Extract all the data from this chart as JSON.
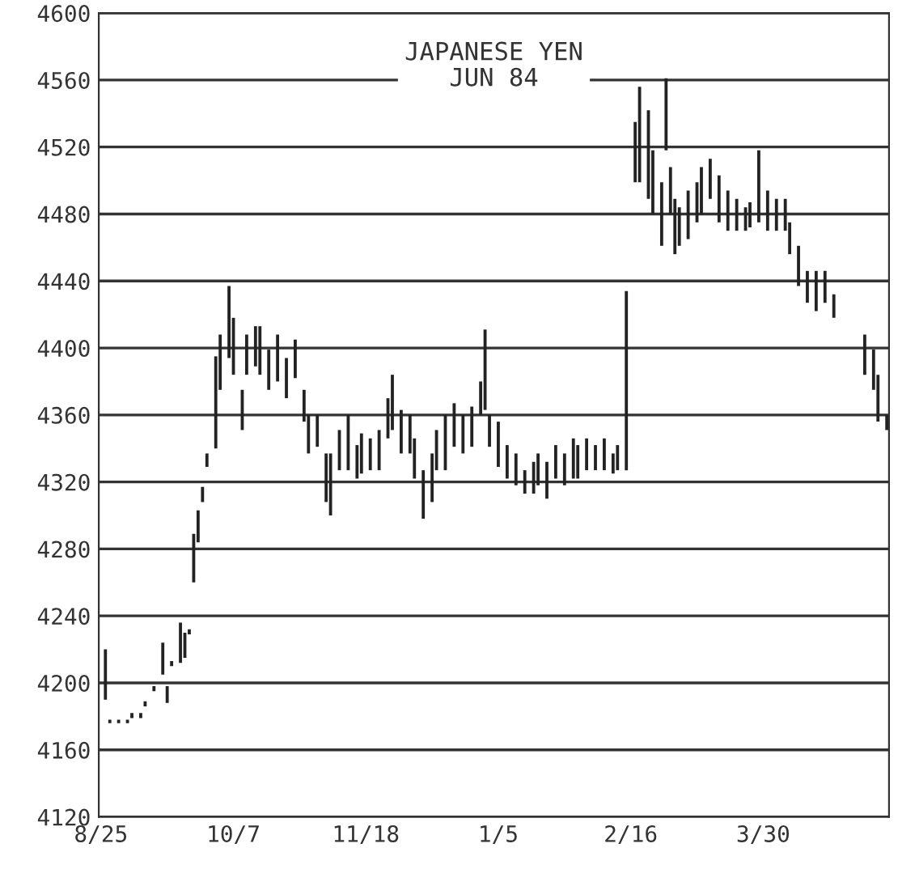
{
  "chart_data": {
    "type": "bar",
    "title": "JAPANESE YEN\nJUN 84",
    "categories": [
      "8/25",
      null,
      null,
      null,
      null,
      null,
      null,
      null,
      null,
      null,
      null,
      null,
      null,
      null,
      null,
      null,
      null,
      null,
      null,
      null,
      null,
      null,
      null,
      null,
      null,
      null,
      null,
      null,
      null,
      null,
      "10/7",
      null,
      null,
      null,
      null,
      null,
      null,
      null,
      null,
      null,
      null,
      null,
      null,
      null,
      null,
      null,
      null,
      null,
      null,
      null,
      null,
      null,
      null,
      null,
      null,
      null,
      null,
      null,
      null,
      null,
      "11/18",
      null,
      null,
      null,
      null,
      null,
      null,
      null,
      null,
      null,
      null,
      null,
      null,
      null,
      null,
      null,
      null,
      null,
      null,
      null,
      null,
      null,
      null,
      null,
      null,
      null,
      null,
      null,
      null,
      null,
      "1/5",
      null,
      null,
      null,
      null,
      null,
      null,
      null,
      null,
      null,
      null,
      null,
      null,
      null,
      null,
      null,
      null,
      null,
      null,
      null,
      null,
      null,
      null,
      null,
      null,
      null,
      null,
      null,
      null,
      null,
      "2/16",
      null,
      null,
      null,
      null,
      null,
      null,
      null,
      null,
      null,
      null,
      null,
      null,
      null,
      null,
      null,
      null,
      null,
      null,
      null,
      null,
      null,
      null,
      null,
      null,
      null,
      null,
      null,
      null,
      null,
      "3/30",
      null,
      null,
      null,
      null,
      null,
      null,
      null,
      null,
      null,
      null,
      null,
      null,
      null,
      null,
      null,
      null,
      null,
      null,
      null,
      null,
      null,
      null,
      null,
      null,
      null,
      null,
      null,
      null
    ],
    "base": [
      null,
      4190,
      4176,
      null,
      4176,
      null,
      4176,
      4179,
      null,
      4179,
      4186,
      null,
      4195,
      null,
      4205,
      4188,
      4210,
      null,
      4212,
      4215,
      4229,
      4260,
      4284,
      4308,
      4329,
      null,
      4340,
      4375,
      null,
      4394,
      4384,
      null,
      4351,
      4384,
      null,
      4389,
      4384,
      null,
      4375,
      null,
      4380,
      null,
      4370,
      null,
      4382,
      null,
      4356,
      4337,
      null,
      4341,
      null,
      4308,
      4300,
      null,
      4327,
      null,
      4327,
      null,
      4322,
      4325,
      null,
      4327,
      null,
      4327,
      null,
      4346,
      4351,
      null,
      4337,
      null,
      4337,
      4322,
      null,
      4298,
      null,
      4308,
      4327,
      null,
      4327,
      null,
      4341,
      null,
      4337,
      null,
      4341,
      null,
      4360,
      4363,
      4341,
      null,
      4329,
      null,
      4322,
      null,
      4318,
      null,
      4313,
      null,
      4313,
      4318,
      null,
      4310,
      null,
      4322,
      null,
      4318,
      null,
      4322,
      4322,
      null,
      4327,
      null,
      4327,
      null,
      4327,
      null,
      4325,
      4327,
      null,
      4327,
      null,
      4499,
      4499,
      null,
      4489,
      4480,
      null,
      4461,
      4518,
      4480,
      4456,
      4461,
      null,
      4465,
      null,
      4475,
      4480,
      null,
      4489,
      null,
      4475,
      null,
      4470,
      null,
      4470,
      null,
      4470,
      4472,
      null,
      4475,
      null,
      4470,
      null,
      4470,
      null,
      4470,
      4456,
      null,
      4437,
      null,
      4427,
      null,
      4422,
      null,
      4427,
      null,
      4418,
      null,
      null,
      null,
      null,
      null,
      null,
      4384,
      null,
      4375,
      4356,
      null,
      4351
    ],
    "values": [
      null,
      30,
      2,
      null,
      2,
      null,
      2,
      3,
      null,
      3,
      3,
      null,
      3,
      null,
      19,
      10,
      3,
      null,
      24,
      15,
      3,
      29,
      19,
      9,
      8,
      null,
      55,
      33,
      null,
      43,
      34,
      null,
      24,
      24,
      null,
      24,
      29,
      null,
      24,
      null,
      28,
      null,
      24,
      null,
      23,
      null,
      19,
      23,
      null,
      19,
      null,
      29,
      37,
      null,
      24,
      null,
      33,
      null,
      20,
      24,
      null,
      19,
      null,
      24,
      null,
      24,
      33,
      null,
      26,
      null,
      23,
      24,
      null,
      29,
      null,
      29,
      24,
      null,
      33,
      null,
      26,
      null,
      23,
      null,
      24,
      null,
      20,
      48,
      19,
      null,
      27,
      null,
      20,
      null,
      19,
      null,
      14,
      null,
      19,
      19,
      null,
      22,
      null,
      20,
      null,
      19,
      null,
      24,
      20,
      null,
      19,
      null,
      15,
      null,
      19,
      null,
      12,
      15,
      null,
      107,
      null,
      36,
      57,
      null,
      53,
      38,
      null,
      38,
      43,
      28,
      33,
      23,
      null,
      29,
      null,
      24,
      28,
      null,
      24,
      null,
      28,
      null,
      24,
      null,
      19,
      null,
      14,
      15,
      null,
      43,
      null,
      24,
      null,
      19,
      null,
      19,
      19,
      null,
      24,
      null,
      19,
      null,
      24,
      null,
      19,
      null,
      14,
      null,
      null,
      null,
      null,
      null,
      null,
      24,
      null,
      24,
      28,
      null,
      9
    ],
    "color": "#222222",
    "ylim": [
      4120,
      4600
    ],
    "yticks": [
      4120,
      4160,
      4200,
      4240,
      4280,
      4320,
      4360,
      4400,
      4440,
      4480,
      4520,
      4560,
      4600
    ],
    "grid": "y"
  }
}
